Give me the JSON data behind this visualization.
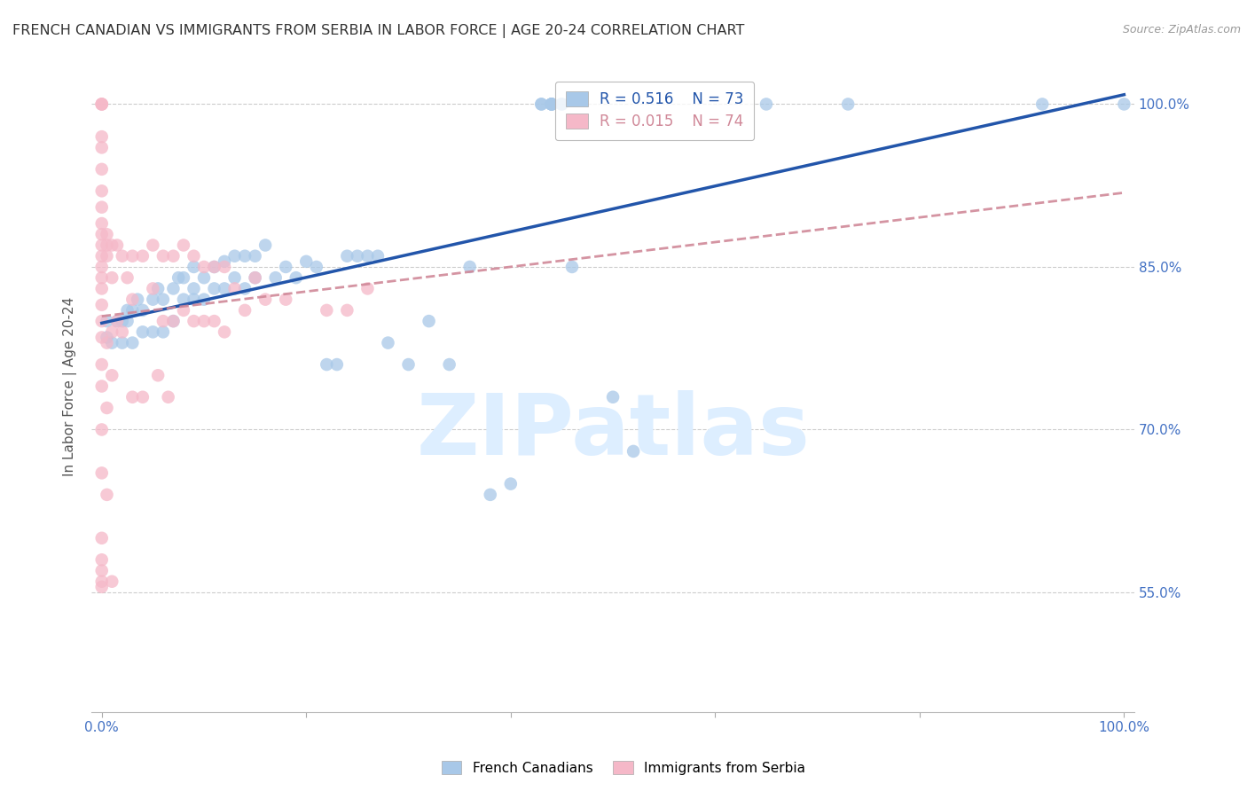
{
  "title": "FRENCH CANADIAN VS IMMIGRANTS FROM SERBIA IN LABOR FORCE | AGE 20-24 CORRELATION CHART",
  "source": "Source: ZipAtlas.com",
  "ylabel": "In Labor Force | Age 20-24",
  "xlim": [
    -0.01,
    1.01
  ],
  "ylim": [
    0.44,
    1.04
  ],
  "yticks": [
    0.55,
    0.7,
    0.85,
    1.0
  ],
  "ytick_labels": [
    "55.0%",
    "70.0%",
    "85.0%",
    "100.0%"
  ],
  "R_blue": 0.516,
  "N_blue": 73,
  "R_pink": 0.015,
  "N_pink": 74,
  "blue_color": "#a8c8e8",
  "pink_color": "#f5b8c8",
  "trend_blue": "#2255aa",
  "trend_pink": "#d08898",
  "watermark": "ZIPatlas",
  "watermark_color": "#ddeeff",
  "background_color": "#ffffff",
  "grid_color": "#cccccc",
  "title_color": "#333333",
  "axis_label_color": "#555555",
  "tick_color": "#4472c4",
  "blue_scatter_x": [
    0.005,
    0.005,
    0.01,
    0.015,
    0.02,
    0.02,
    0.025,
    0.025,
    0.03,
    0.03,
    0.035,
    0.04,
    0.04,
    0.05,
    0.05,
    0.055,
    0.06,
    0.06,
    0.07,
    0.07,
    0.075,
    0.08,
    0.08,
    0.09,
    0.09,
    0.09,
    0.1,
    0.1,
    0.11,
    0.11,
    0.12,
    0.12,
    0.13,
    0.13,
    0.14,
    0.14,
    0.15,
    0.15,
    0.16,
    0.17,
    0.18,
    0.19,
    0.2,
    0.21,
    0.22,
    0.23,
    0.24,
    0.25,
    0.26,
    0.27,
    0.28,
    0.3,
    0.32,
    0.34,
    0.36,
    0.38,
    0.4,
    0.43,
    0.43,
    0.44,
    0.44,
    0.44,
    0.44,
    0.44,
    0.45,
    0.45,
    0.46,
    0.5,
    0.52,
    0.65,
    0.73,
    0.92,
    1.0
  ],
  "blue_scatter_y": [
    0.785,
    0.8,
    0.78,
    0.8,
    0.78,
    0.8,
    0.8,
    0.81,
    0.78,
    0.81,
    0.82,
    0.79,
    0.81,
    0.79,
    0.82,
    0.83,
    0.79,
    0.82,
    0.8,
    0.83,
    0.84,
    0.82,
    0.84,
    0.82,
    0.83,
    0.85,
    0.82,
    0.84,
    0.83,
    0.85,
    0.83,
    0.855,
    0.84,
    0.86,
    0.83,
    0.86,
    0.84,
    0.86,
    0.87,
    0.84,
    0.85,
    0.84,
    0.855,
    0.85,
    0.76,
    0.76,
    0.86,
    0.86,
    0.86,
    0.86,
    0.78,
    0.76,
    0.8,
    0.76,
    0.85,
    0.64,
    0.65,
    1.0,
    1.0,
    1.0,
    1.0,
    1.0,
    1.0,
    1.0,
    1.0,
    1.0,
    0.85,
    0.73,
    0.68,
    1.0,
    1.0,
    1.0,
    1.0
  ],
  "pink_scatter_x": [
    0.0,
    0.0,
    0.0,
    0.0,
    0.0,
    0.0,
    0.0,
    0.0,
    0.0,
    0.0,
    0.0,
    0.0,
    0.0,
    0.0,
    0.0,
    0.0,
    0.0,
    0.0,
    0.0,
    0.0,
    0.0,
    0.0,
    0.0,
    0.0,
    0.0,
    0.0,
    0.0,
    0.005,
    0.005,
    0.005,
    0.005,
    0.005,
    0.005,
    0.01,
    0.01,
    0.01,
    0.01,
    0.01,
    0.015,
    0.015,
    0.02,
    0.02,
    0.025,
    0.03,
    0.03,
    0.03,
    0.04,
    0.04,
    0.05,
    0.05,
    0.055,
    0.06,
    0.06,
    0.065,
    0.07,
    0.07,
    0.08,
    0.08,
    0.09,
    0.09,
    0.1,
    0.1,
    0.11,
    0.11,
    0.12,
    0.12,
    0.13,
    0.14,
    0.15,
    0.16,
    0.18,
    0.22,
    0.24,
    0.26
  ],
  "pink_scatter_y": [
    1.0,
    1.0,
    1.0,
    0.97,
    0.96,
    0.94,
    0.92,
    0.905,
    0.89,
    0.88,
    0.87,
    0.86,
    0.85,
    0.84,
    0.83,
    0.815,
    0.8,
    0.785,
    0.76,
    0.74,
    0.7,
    0.66,
    0.6,
    0.58,
    0.57,
    0.56,
    0.555,
    0.88,
    0.87,
    0.86,
    0.78,
    0.72,
    0.64,
    0.87,
    0.84,
    0.79,
    0.75,
    0.56,
    0.87,
    0.8,
    0.86,
    0.79,
    0.84,
    0.86,
    0.82,
    0.73,
    0.86,
    0.73,
    0.87,
    0.83,
    0.75,
    0.86,
    0.8,
    0.73,
    0.86,
    0.8,
    0.87,
    0.81,
    0.86,
    0.8,
    0.85,
    0.8,
    0.85,
    0.8,
    0.85,
    0.79,
    0.83,
    0.81,
    0.84,
    0.82,
    0.82,
    0.81,
    0.81,
    0.83
  ]
}
